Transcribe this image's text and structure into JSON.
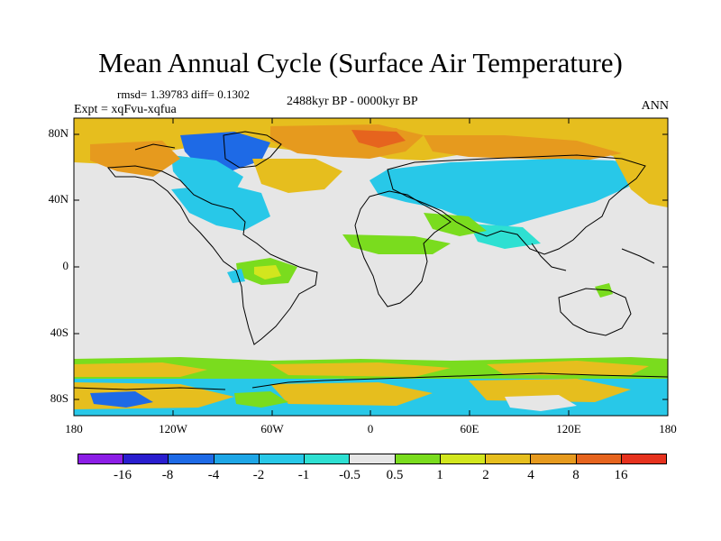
{
  "title": "Mean Annual Cycle (Surface Air Temperature)",
  "stats": "rmsd= 1.39783 diff= 0.1302",
  "experiment": "Expt = xqFvu-xqfua",
  "period": "2488kyr BP - 0000kyr BP",
  "season": "ANN",
  "y_axis_labels": [
    "80N",
    "40N",
    "0",
    "40S",
    "80S"
  ],
  "x_axis_labels": [
    "180",
    "120W",
    "60W",
    "0",
    "60E",
    "120E",
    "180"
  ],
  "colorbar": {
    "labels": [
      "-16",
      "-8",
      "-4",
      "-2",
      "-1",
      "-0.5",
      "0.5",
      "1",
      "2",
      "4",
      "8",
      "16"
    ],
    "colors": [
      "#8c1ee6",
      "#2a1ecf",
      "#1e6ae6",
      "#1ea6e6",
      "#28c8e8",
      "#2ee0d2",
      "#e6e6e6",
      "#7adc1e",
      "#d2e61e",
      "#e6be1e",
      "#e69a1e",
      "#e6641e",
      "#e6321e"
    ]
  },
  "colors": {
    "neutral": "#e6e6e6",
    "cool": "#28c8e8",
    "cool2": "#2ee0d2",
    "blue": "#1e6ae6",
    "green": "#7adc1e",
    "yellow": "#d2e61e",
    "orange": "#e6be1e",
    "orange2": "#e69a1e",
    "red": "#e6641e"
  }
}
